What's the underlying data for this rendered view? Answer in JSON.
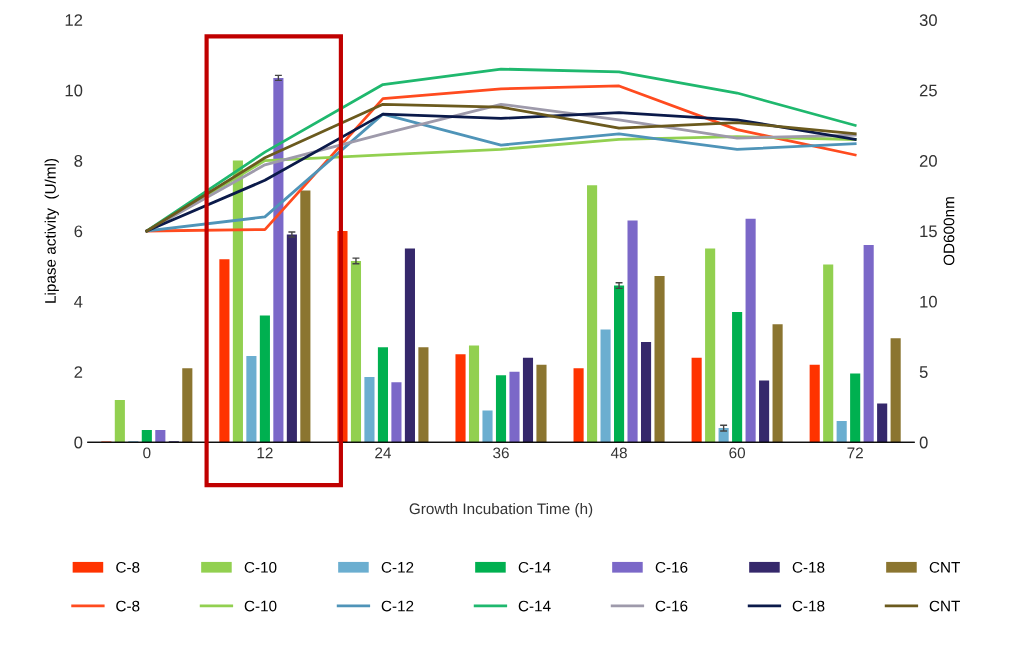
{
  "chart_data": {
    "type": "bar",
    "xlabel": "Growth Incubation Time (h)",
    "ylabel": "Lipase activity  (U/ml)",
    "y2label": "OD600nm",
    "categories": [
      "0",
      "12",
      "24",
      "36",
      "48",
      "60",
      "72"
    ],
    "ylim": [
      0,
      12
    ],
    "yticks": [
      0,
      2,
      4,
      6,
      8,
      10,
      12
    ],
    "y2lim": [
      0,
      30
    ],
    "y2ticks": [
      0,
      5,
      10,
      15,
      20,
      25,
      30
    ],
    "grid": false,
    "legend": "bottom",
    "series": [
      {
        "name": "C-8",
        "color": "#ff3300",
        "values": [
          0.02,
          5.2,
          6.0,
          2.5,
          2.1,
          2.4,
          2.2
        ]
      },
      {
        "name": "C-10",
        "color": "#92d050",
        "values": [
          1.2,
          8.0,
          5.15,
          2.75,
          7.3,
          5.5,
          5.05
        ],
        "errors": [
          null,
          null,
          0.08,
          null,
          null,
          null,
          null
        ]
      },
      {
        "name": "C-12",
        "color": "#6baed0",
        "values": [
          0.03,
          2.45,
          1.85,
          0.9,
          3.2,
          0.4,
          0.6
        ],
        "errors": [
          null,
          null,
          null,
          null,
          null,
          0.08,
          null
        ]
      },
      {
        "name": "C-14",
        "color": "#00b050",
        "values": [
          0.35,
          3.6,
          2.7,
          1.9,
          4.45,
          3.7,
          1.95
        ],
        "errors": [
          null,
          null,
          null,
          null,
          0.08,
          null,
          null
        ]
      },
      {
        "name": "C-16",
        "color": "#7b68c8",
        "values": [
          0.35,
          10.35,
          1.7,
          2.0,
          6.3,
          6.35,
          5.6
        ],
        "errors": [
          null,
          0.07,
          null,
          null,
          null,
          null,
          null
        ]
      },
      {
        "name": "C-18",
        "color": "#35286b",
        "values": [
          0.03,
          5.9,
          5.5,
          2.4,
          2.85,
          1.75,
          1.1
        ],
        "errors": [
          null,
          0.07,
          null,
          null,
          null,
          null,
          null
        ]
      },
      {
        "name": "CNT",
        "color": "#8b7530",
        "values": [
          2.1,
          7.15,
          2.7,
          2.2,
          4.72,
          3.35,
          2.95
        ]
      },
      {
        "name": "C-8",
        "type": "line",
        "axis": "y2",
        "color": "#ff4b1f",
        "values": [
          15,
          15.1,
          24.4,
          25.1,
          25.3,
          22.2,
          20.4
        ]
      },
      {
        "name": "C-10",
        "type": "line",
        "axis": "y2",
        "color": "#92d050",
        "values": [
          15,
          20.0,
          20.4,
          20.8,
          21.5,
          21.7,
          21.5
        ]
      },
      {
        "name": "C-12",
        "type": "line",
        "axis": "y2",
        "color": "#4f94b8",
        "values": [
          15,
          16.0,
          23.3,
          21.1,
          21.9,
          20.8,
          21.2
        ]
      },
      {
        "name": "C-14",
        "type": "line",
        "axis": "y2",
        "color": "#1fb86e",
        "values": [
          15,
          20.6,
          25.4,
          26.5,
          26.3,
          24.8,
          22.5
        ]
      },
      {
        "name": "C-16",
        "type": "line",
        "axis": "y2",
        "color": "#9e9aab",
        "values": [
          15,
          19.7,
          21.9,
          24.0,
          22.9,
          21.6,
          21.8
        ]
      },
      {
        "name": "C-18",
        "type": "line",
        "axis": "y2",
        "color": "#0b1a4a",
        "values": [
          15,
          18.6,
          23.3,
          23.0,
          23.4,
          22.9,
          21.5
        ]
      },
      {
        "name": "CNT",
        "type": "line",
        "axis": "y2",
        "color": "#6b5a1e",
        "values": [
          15,
          20.2,
          24.0,
          23.8,
          22.3,
          22.7,
          21.9
        ]
      }
    ]
  }
}
